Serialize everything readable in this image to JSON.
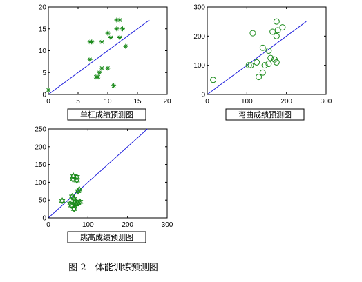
{
  "figure_caption": "图 2　体能训练预测图",
  "chart_data": [
    {
      "type": "scatter",
      "title": "单杠成绩预测图",
      "xlim": [
        0,
        20
      ],
      "ylim": [
        0,
        20
      ],
      "xticks": [
        "0",
        "5",
        "10",
        "15",
        "20"
      ],
      "yticks": [
        "0",
        "5",
        "10",
        "15",
        "20"
      ],
      "marker": "asterisk",
      "marker_color": "#1a8a1a",
      "line_color": "#2222dd",
      "grid": false,
      "reference_line": [
        [
          0,
          0
        ],
        [
          17,
          17
        ]
      ],
      "points": [
        [
          0,
          1
        ],
        [
          7,
          12
        ],
        [
          7.3,
          12
        ],
        [
          7,
          8
        ],
        [
          8,
          4
        ],
        [
          8.4,
          4
        ],
        [
          8.6,
          5
        ],
        [
          9,
          6
        ],
        [
          10,
          6
        ],
        [
          9,
          12
        ],
        [
          10,
          14
        ],
        [
          10.5,
          13
        ],
        [
          11,
          2
        ],
        [
          11.5,
          17
        ],
        [
          12,
          17
        ],
        [
          11.5,
          15
        ],
        [
          12.5,
          15
        ],
        [
          12,
          13
        ],
        [
          13,
          11
        ]
      ]
    },
    {
      "type": "scatter",
      "title": "弯曲成绩预测图",
      "xlim": [
        0,
        300
      ],
      "ylim": [
        0,
        300
      ],
      "xticks": [
        "0",
        "100",
        "200",
        "300"
      ],
      "yticks": [
        "0",
        "100",
        "200",
        "300"
      ],
      "marker": "circle",
      "marker_color": "#1a8a1a",
      "line_color": "#2222dd",
      "grid": false,
      "reference_line": [
        [
          0,
          0
        ],
        [
          250,
          250
        ]
      ],
      "points": [
        [
          15,
          50
        ],
        [
          105,
          100
        ],
        [
          110,
          100
        ],
        [
          115,
          210
        ],
        [
          125,
          110
        ],
        [
          130,
          60
        ],
        [
          140,
          75
        ],
        [
          140,
          160
        ],
        [
          145,
          100
        ],
        [
          155,
          105
        ],
        [
          155,
          150
        ],
        [
          160,
          125
        ],
        [
          165,
          215
        ],
        [
          170,
          120
        ],
        [
          175,
          110
        ],
        [
          175,
          250
        ],
        [
          175,
          200
        ],
        [
          178,
          220
        ],
        [
          190,
          230
        ]
      ]
    },
    {
      "type": "scatter",
      "title": "跳高成绩预测图",
      "xlim": [
        0,
        300
      ],
      "ylim": [
        0,
        250
      ],
      "xticks": [
        "0",
        "100",
        "200",
        "300"
      ],
      "yticks": [
        "0",
        "50",
        "100",
        "150",
        "200",
        "250"
      ],
      "marker": "hexagram",
      "marker_color": "#1a8a1a",
      "line_color": "#2222dd",
      "grid": false,
      "reference_line": [
        [
          0,
          0
        ],
        [
          250,
          250
        ]
      ],
      "points": [
        [
          35,
          48
        ],
        [
          55,
          40
        ],
        [
          58,
          35
        ],
        [
          60,
          60
        ],
        [
          62,
          108
        ],
        [
          63,
          118
        ],
        [
          65,
          55
        ],
        [
          65,
          25
        ],
        [
          68,
          45
        ],
        [
          70,
          38
        ],
        [
          72,
          115
        ],
        [
          72,
          105
        ],
        [
          75,
          75
        ],
        [
          75,
          42
        ],
        [
          78,
          80
        ],
        [
          80,
          45
        ]
      ]
    }
  ]
}
